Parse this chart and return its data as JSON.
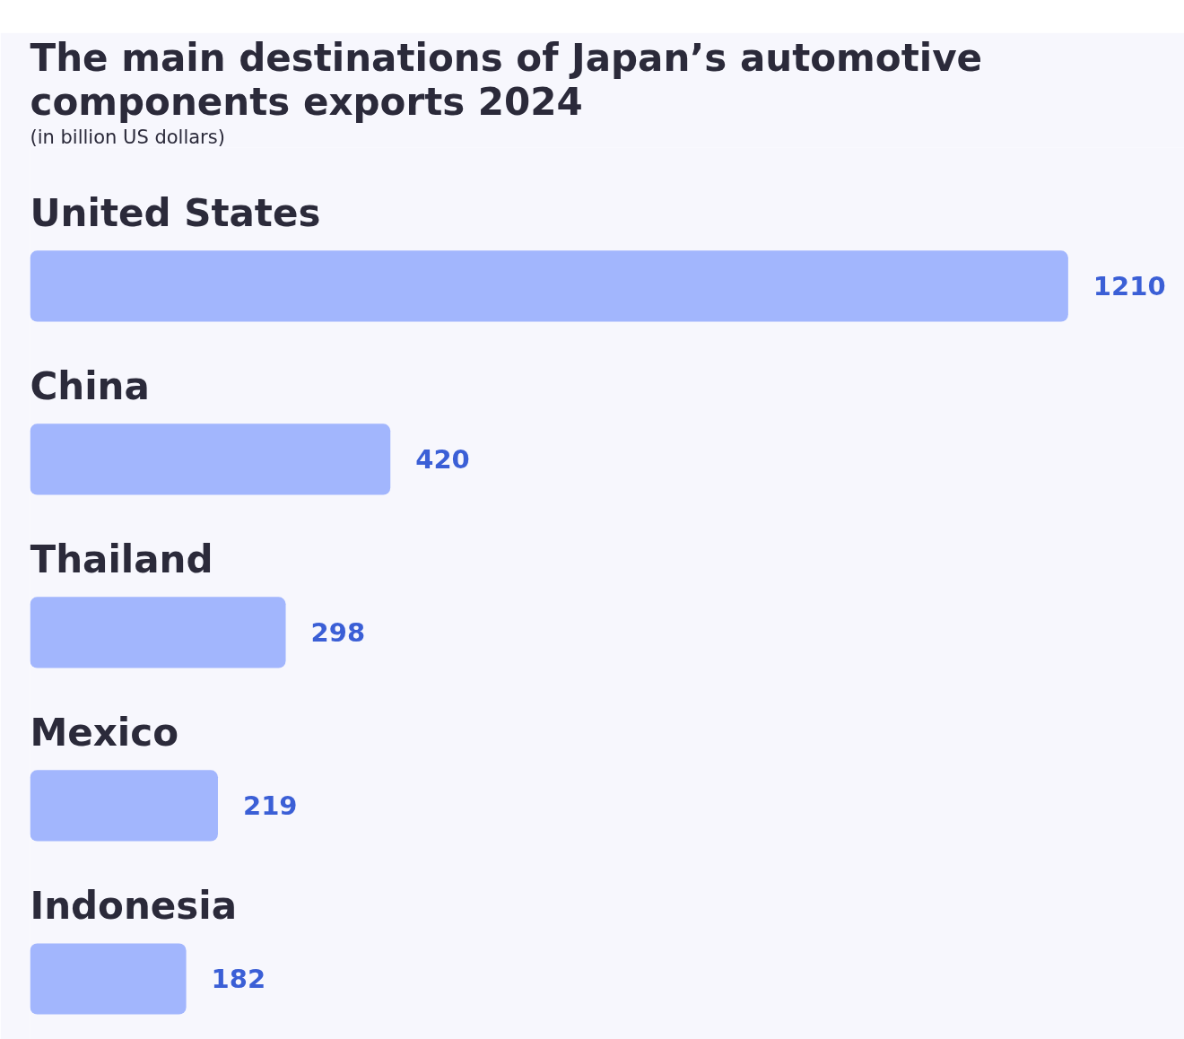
{
  "chart_data": {
    "type": "bar",
    "orientation": "horizontal",
    "title": "The main destinations of Japan’s automotive components exports 2024",
    "subtitle": "(in billion US dollars)",
    "categories": [
      "United States",
      "China",
      "Thailand",
      "Mexico",
      "Indonesia"
    ],
    "values": [
      1210,
      420,
      298,
      219,
      182
    ],
    "color": "#a2b6fd",
    "data_labels": true
  }
}
